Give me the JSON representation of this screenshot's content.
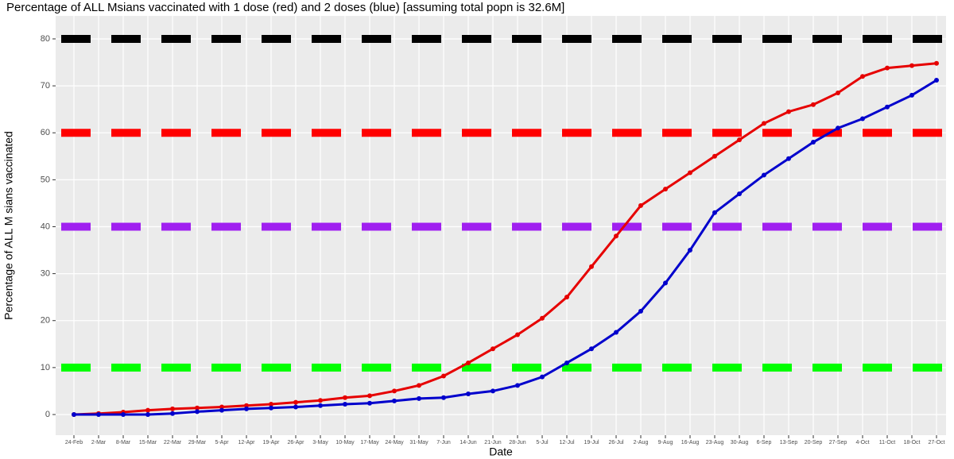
{
  "chart_data": {
    "type": "line",
    "title": "Percentage of ALL Msians vaccinated with 1 dose (red) and 2 doses (blue) [assuming total popn is 32.6M]",
    "x_label": "Date",
    "y_label": "Percentage of ALL M sians vaccinated",
    "x": [
      "24-Feb",
      "2-Mar",
      "8-Mar",
      "15-Mar",
      "22-Mar",
      "29-Mar",
      "5-Apr",
      "12-Apr",
      "19-Apr",
      "26-Apr",
      "3-May",
      "10-May",
      "17-May",
      "24-May",
      "31-May",
      "7-Jun",
      "14-Jun",
      "21-Jun",
      "28-Jun",
      "5-Jul",
      "12-Jul",
      "19-Jul",
      "26-Jul",
      "2-Aug",
      "9-Aug",
      "16-Aug",
      "23-Aug",
      "30-Aug",
      "6-Sep",
      "13-Sep",
      "20-Sep",
      "27-Sep",
      "4-Oct",
      "11-Oct",
      "18-Oct",
      "27-Oct"
    ],
    "series": [
      {
        "name": "1 dose",
        "color": "#e60000",
        "values": [
          0,
          0.2,
          0.5,
          0.9,
          1.2,
          1.4,
          1.6,
          1.9,
          2.2,
          2.6,
          3.0,
          3.6,
          4.0,
          5.0,
          6.2,
          8.2,
          11,
          14,
          17,
          20.5,
          25,
          31.5,
          38,
          44.5,
          48,
          51.5,
          55,
          58.5,
          62,
          64.5,
          66,
          68.5,
          72,
          73.8,
          74.3,
          74.8
        ]
      },
      {
        "name": "2 doses",
        "color": "#0000cc",
        "values": [
          0,
          0,
          0,
          0,
          0.2,
          0.6,
          0.9,
          1.2,
          1.4,
          1.6,
          1.9,
          2.2,
          2.4,
          2.9,
          3.4,
          3.6,
          4.4,
          5,
          6.2,
          8,
          11,
          14,
          17.5,
          22,
          28,
          35,
          43,
          47,
          51,
          54.5,
          58,
          61,
          63,
          65.5,
          68,
          71.2
        ]
      }
    ],
    "hlines": [
      {
        "value": 80,
        "color": "#000000"
      },
      {
        "value": 60,
        "color": "#ff0000"
      },
      {
        "value": 40,
        "color": "#a020f0"
      },
      {
        "value": 10,
        "color": "#00ff00"
      }
    ],
    "ylim": [
      -4.4,
      84.9
    ],
    "yticks": [
      0,
      10,
      20,
      30,
      40,
      50,
      60,
      70,
      80
    ],
    "grid": true
  }
}
